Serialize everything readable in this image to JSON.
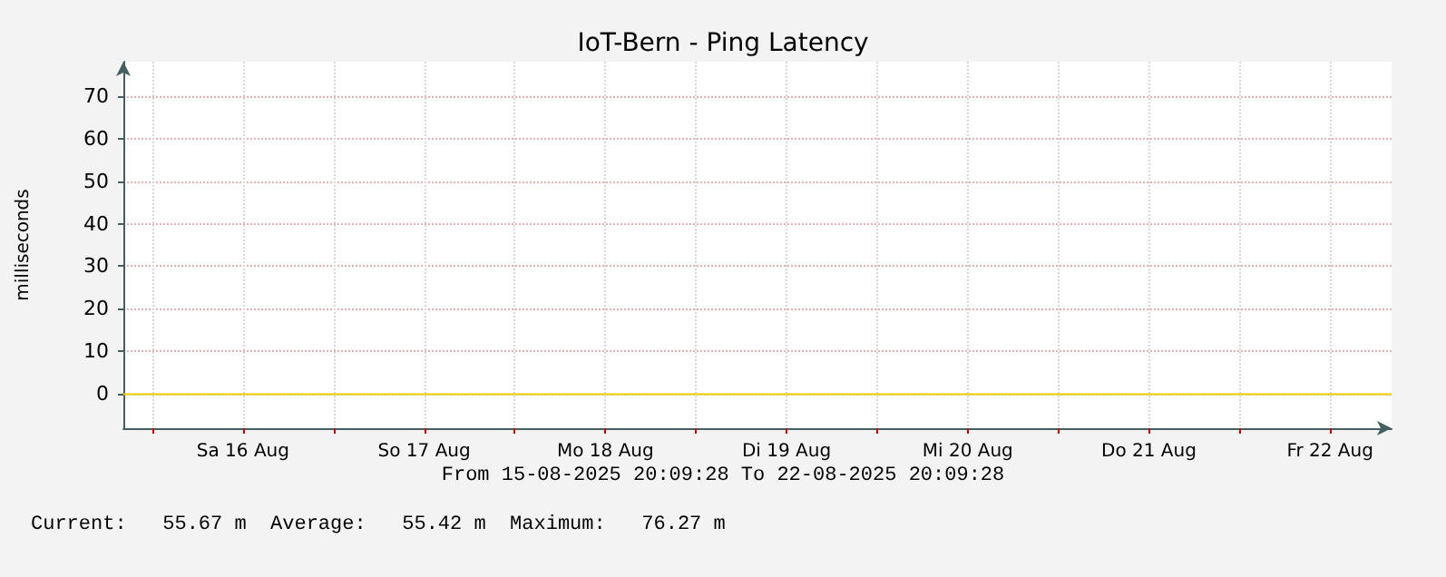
{
  "chart_data": {
    "type": "line",
    "title": "IoT-Bern - Ping Latency",
    "ylabel": "milliseconds",
    "annotations": [
      "From 15-08-2025 20:09:28 To 22-08-2025 20:09:28",
      "Current:   55.67 m  Average:   55.42 m  Maximum:   76.27 m"
    ],
    "x": [
      "2025-08-15T20:09",
      "2025-08-16T08:00",
      "2025-08-16T20:00",
      "2025-08-17T08:00",
      "2025-08-17T20:00",
      "2025-08-18T08:00",
      "2025-08-18T12:00",
      "2025-08-18T20:00",
      "2025-08-19T08:00",
      "2025-08-19T20:00",
      "2025-08-20T08:00",
      "2025-08-20T20:00",
      "2025-08-21T08:00",
      "2025-08-21T20:00",
      "2025-08-22T08:00",
      "2025-08-22T20:09"
    ],
    "series": [
      {
        "color": "#f0d000",
        "values": [
          0,
          0,
          0,
          0,
          0,
          0,
          0,
          0,
          0,
          0,
          0,
          0,
          0,
          0,
          0,
          0
        ]
      }
    ],
    "xlim": [
      "2025-08-15T20:09",
      "2025-08-22T20:09"
    ],
    "xticks": [
      {
        "value": "2025-08-16T00:00",
        "label": null
      },
      {
        "value": "2025-08-16T12:00",
        "label": "Sa 16 Aug"
      },
      {
        "value": "2025-08-17T00:00",
        "label": null
      },
      {
        "value": "2025-08-17T12:00",
        "label": "So 17 Aug"
      },
      {
        "value": "2025-08-18T00:00",
        "label": null
      },
      {
        "value": "2025-08-18T12:00",
        "label": "Mo 18 Aug"
      },
      {
        "value": "2025-08-19T00:00",
        "label": null
      },
      {
        "value": "2025-08-19T12:00",
        "label": "Di 19 Aug"
      },
      {
        "value": "2025-08-20T00:00",
        "label": null
      },
      {
        "value": "2025-08-20T12:00",
        "label": "Mi 20 Aug"
      },
      {
        "value": "2025-08-21T00:00",
        "label": null
      },
      {
        "value": "2025-08-21T12:00",
        "label": "Do 21 Aug"
      },
      {
        "value": "2025-08-22T00:00",
        "label": null
      },
      {
        "value": "2025-08-22T12:00",
        "label": "Fr 22 Aug"
      }
    ],
    "ylim": [
      -8,
      78
    ],
    "yticks": [
      0,
      10,
      20,
      30,
      40,
      50,
      60,
      70
    ],
    "grid": true,
    "marker": "none",
    "line_style": "solid"
  }
}
